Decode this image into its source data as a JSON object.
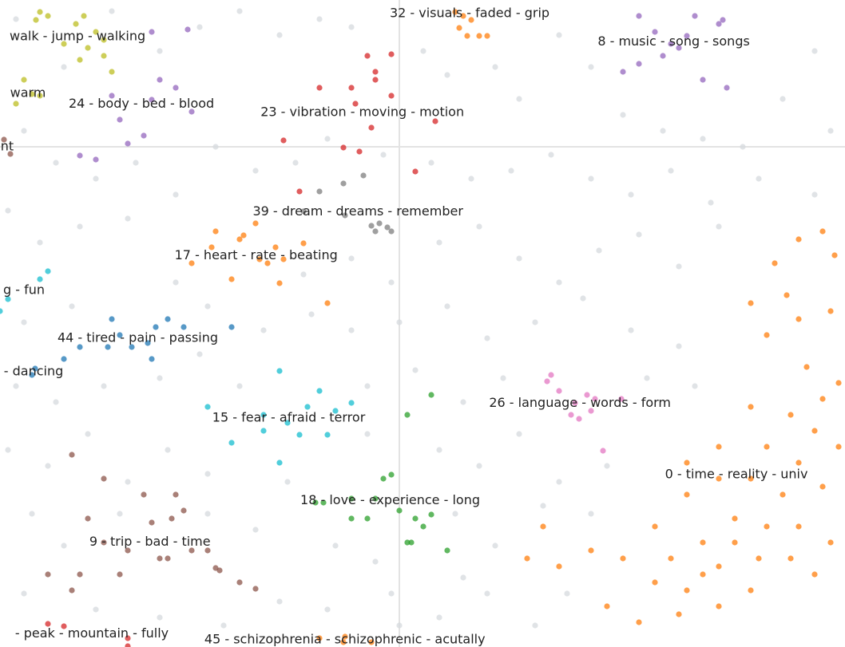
{
  "chart_data": {
    "type": "scatter",
    "xlim": [
      -500,
      558
    ],
    "ylim": [
      -627,
      184
    ],
    "zero_lines": true,
    "series": [
      {
        "color": "#d5d9de",
        "x": [
          -480,
          -420,
          -360,
          -300,
          -250,
          -200,
          -150,
          -100,
          -60,
          30,
          60,
          120,
          150,
          200,
          240,
          280,
          330,
          380,
          430,
          480,
          520,
          540,
          -470,
          -430,
          -380,
          -330,
          -280,
          -230,
          -180,
          -130,
          -90,
          -20,
          40,
          90,
          140,
          190,
          240,
          290,
          340,
          390,
          450,
          520,
          -490,
          -450,
          -400,
          -340,
          -280,
          -120,
          -60,
          -10,
          50,
          100,
          150,
          200,
          250,
          300,
          350,
          400,
          -470,
          -410,
          -240,
          -170,
          -110,
          -60,
          0,
          60,
          110,
          170,
          230,
          290,
          350,
          -480,
          -430,
          -370,
          -300,
          -250,
          -200,
          -40,
          20,
          80,
          130,
          310,
          370,
          -490,
          -440,
          -390,
          -340,
          -290,
          -240,
          -40,
          50,
          100,
          150,
          200,
          260,
          -460,
          -420,
          -350,
          -240,
          -180,
          -140,
          -80,
          -30,
          70,
          120,
          180,
          240,
          -470,
          -380,
          -300,
          -220,
          -150,
          -90,
          -10,
          50,
          110,
          170,
          210,
          80,
          0
        ],
        "y": [
          160,
          100,
          170,
          120,
          150,
          170,
          140,
          160,
          150,
          120,
          90,
          100,
          60,
          140,
          100,
          40,
          20,
          10,
          0,
          60,
          120,
          20,
          20,
          -20,
          -40,
          -20,
          -60,
          0,
          -30,
          -20,
          10,
          -10,
          -20,
          -40,
          -30,
          -10,
          -40,
          -60,
          -30,
          -70,
          -40,
          -60,
          -80,
          -120,
          -100,
          -90,
          -170,
          -160,
          -140,
          -170,
          -120,
          -100,
          -140,
          -170,
          -130,
          -110,
          -150,
          -100,
          -220,
          -200,
          -200,
          -230,
          -210,
          -230,
          -220,
          -200,
          -240,
          -220,
          -190,
          -230,
          -250,
          -300,
          -320,
          -300,
          -290,
          -260,
          -300,
          -300,
          -280,
          -320,
          -290,
          -290,
          -300,
          -380,
          -400,
          -360,
          -420,
          -380,
          -410,
          -360,
          -380,
          -400,
          -360,
          -420,
          -400,
          -460,
          -500,
          -460,
          -460,
          -480,
          -420,
          -500,
          -520,
          -460,
          -500,
          -450,
          -460,
          -560,
          -580,
          -590,
          -600,
          -570,
          -580,
          -560,
          -590,
          -560,
          -600,
          -560,
          -540,
          -600
        ]
      },
      {
        "name": "walk - jump - walking",
        "color": "#bcbd22",
        "x": [
          -450,
          -440,
          -455,
          -405,
          -390,
          -370,
          -400,
          -360,
          -380,
          -420,
          -395,
          -370
        ],
        "y": [
          169,
          164,
          159,
          154,
          124,
          134,
          109,
          94,
          144,
          129,
          164,
          114
        ]
      },
      {
        "name": "warm",
        "color": "#bcbd22",
        "x": [
          -470,
          -480,
          -450,
          -460
        ],
        "y": [
          84,
          54,
          64,
          66
        ]
      },
      {
        "name": "24 - body - bed - blood",
        "color": "#9467bd",
        "x": [
          -350,
          -340,
          -300,
          -280,
          -260,
          -380,
          -400,
          -310,
          -265,
          -320,
          -360,
          -310
        ],
        "y": [
          34,
          4,
          84,
          74,
          44,
          -16,
          -11,
          144,
          147,
          14,
          64,
          59
        ]
      },
      {
        "name": "nt",
        "color": "#8c564b",
        "x": [
          -495,
          -487
        ],
        "y": [
          9,
          -9
        ]
      },
      {
        "name": "32 - visuals - faded - grip",
        "color": "#ff7f0e",
        "x": [
          80,
          90,
          100,
          85,
          75,
          110,
          95,
          70,
          105,
          70
        ],
        "y": [
          164,
          159,
          139,
          139,
          149,
          139,
          204,
          214,
          194,
          169
        ]
      },
      {
        "name": "8 - music - song - songs",
        "color": "#9467bd",
        "x": [
          300,
          320,
          350,
          370,
          400,
          380,
          410,
          300,
          280,
          330,
          360,
          405,
          340,
          265
        ],
        "y": [
          164,
          144,
          124,
          164,
          154,
          84,
          74,
          104,
          94,
          114,
          139,
          159,
          129,
          194
        ]
      },
      {
        "name": "23 - vibration - moving - motion",
        "color": "#d62728",
        "x": [
          -40,
          -30,
          -55,
          -35,
          -70,
          -50,
          -100,
          -125,
          -145,
          20,
          45,
          -10,
          -30,
          -60,
          -10
        ],
        "y": [
          114,
          94,
          54,
          24,
          -1,
          -6,
          74,
          -56,
          8,
          -31,
          32,
          116,
          84,
          74,
          64
        ]
      },
      {
        "name": "39 - dream - dreams - remember",
        "color": "#7f7f7f",
        "x": [
          -35,
          -25,
          -15,
          -30,
          -10,
          -68,
          -120,
          -100,
          -70,
          -45
        ],
        "y": [
          -99,
          -96,
          -101,
          -106,
          -106,
          -86,
          -81,
          -56,
          -46,
          -36
        ]
      },
      {
        "name": "17 - heart - rate - beating",
        "color": "#ff7f0e",
        "x": [
          -175,
          -165,
          -200,
          -155,
          -145,
          -230,
          -210,
          -260,
          -120,
          -150,
          -180,
          -90,
          -235,
          -195
        ],
        "y": [
          -141,
          -146,
          -116,
          -126,
          -141,
          -106,
          -166,
          -146,
          -121,
          -171,
          -96,
          -196,
          -126,
          -111
        ]
      },
      {
        "name": "g - fun",
        "color": "#17becf",
        "x": [
          -440,
          -450,
          -490,
          -500
        ],
        "y": [
          -156,
          -166,
          -191,
          -206
        ]
      },
      {
        "name": "44 - tired - pain - passing",
        "color": "#1f77b4",
        "x": [
          -315,
          -310,
          -335,
          -365,
          -400,
          -420,
          -290,
          -270,
          -210,
          -305,
          -350,
          -360
        ],
        "y": [
          -246,
          -266,
          -251,
          -251,
          -251,
          -266,
          -216,
          -226,
          -226,
          -226,
          -236,
          -216
        ]
      },
      {
        "name": "- dancing",
        "color": "#1f77b4",
        "x": [
          -460,
          -456
        ],
        "y": [
          -286,
          -278
        ]
      },
      {
        "name": "15 - fear - afraid - terror",
        "color": "#17becf",
        "x": [
          -170,
          -140,
          -125,
          -90,
          -80,
          -115,
          -150,
          -210,
          -150,
          -100,
          -60,
          -170,
          -240
        ],
        "y": [
          -336,
          -346,
          -361,
          -361,
          -331,
          -326,
          -281,
          -371,
          -396,
          -306,
          -321,
          -356,
          -326
        ]
      },
      {
        "name": "26 - language - words - form",
        "color": "#e377c2",
        "x": [
          235,
          245,
          220,
          240,
          225,
          200,
          185,
          255,
          278,
          215,
          190
        ],
        "y": [
          -311,
          -316,
          -321,
          -331,
          -341,
          -306,
          -294,
          -381,
          -316,
          -336,
          -286
        ]
      },
      {
        "name": "0 - time - reality - univ",
        "color": "#ff7f0e",
        "x": [
          500,
          530,
          545,
          470,
          485,
          500,
          540,
          460,
          440,
          510,
          530,
          550,
          490,
          520,
          460,
          500,
          440,
          480,
          530,
          400,
          360,
          420,
          460,
          500,
          540,
          380,
          340,
          400,
          450,
          490,
          520,
          360,
          320,
          280,
          240,
          200,
          160,
          180,
          260,
          300,
          350,
          400,
          440,
          380,
          420,
          320,
          360,
          400,
          440,
          550
        ],
        "y": [
          -116,
          -106,
          -136,
          -146,
          -186,
          -216,
          -206,
          -236,
          -196,
          -276,
          -316,
          -296,
          -336,
          -356,
          -376,
          -396,
          -416,
          -436,
          -426,
          -416,
          -436,
          -466,
          -476,
          -476,
          -496,
          -496,
          -516,
          -526,
          -516,
          -516,
          -536,
          -556,
          -546,
          -516,
          -506,
          -526,
          -516,
          -476,
          -576,
          -596,
          -586,
          -576,
          -556,
          -536,
          -496,
          -476,
          -396,
          -376,
          -326,
          -376
        ]
      },
      {
        "name": "18 - love - experience - long",
        "color": "#2ca02c",
        "x": [
          -20,
          0,
          20,
          30,
          40,
          10,
          -40,
          -60,
          -95,
          -105,
          -10,
          10,
          40,
          -30,
          15,
          60,
          -60
        ],
        "y": [
          -416,
          -456,
          -466,
          -476,
          -461,
          -496,
          -466,
          -466,
          -446,
          -446,
          -411,
          -336,
          -311,
          -441,
          -496,
          -506,
          -441
        ]
      },
      {
        "name": "9 - trip - bad - time",
        "color": "#8c564b",
        "x": [
          -310,
          -285,
          -270,
          -300,
          -290,
          -230,
          -225,
          -340,
          -370,
          -400,
          -410,
          -350,
          -260,
          -240,
          -200,
          -180,
          -320,
          -280,
          -390,
          -440,
          -410,
          -370
        ],
        "y": [
          -471,
          -466,
          -456,
          -516,
          -516,
          -528,
          -531,
          -506,
          -496,
          -536,
          -556,
          -536,
          -506,
          -506,
          -546,
          -554,
          -436,
          -436,
          -466,
          -536,
          -386,
          -416
        ]
      },
      {
        "name": "45 - schizophrenia - schizophrenic - acutally",
        "color": "#ff7f0e",
        "x": [
          -100,
          -70,
          -35,
          -68
        ],
        "y": [
          -616,
          -621,
          -621,
          -614
        ]
      },
      {
        "name": "- peak - mountain - fully",
        "color": "#d62728",
        "x": [
          -440,
          -420,
          -340,
          -340
        ],
        "y": [
          -598,
          -601,
          -616,
          -626
        ]
      }
    ]
  }
}
